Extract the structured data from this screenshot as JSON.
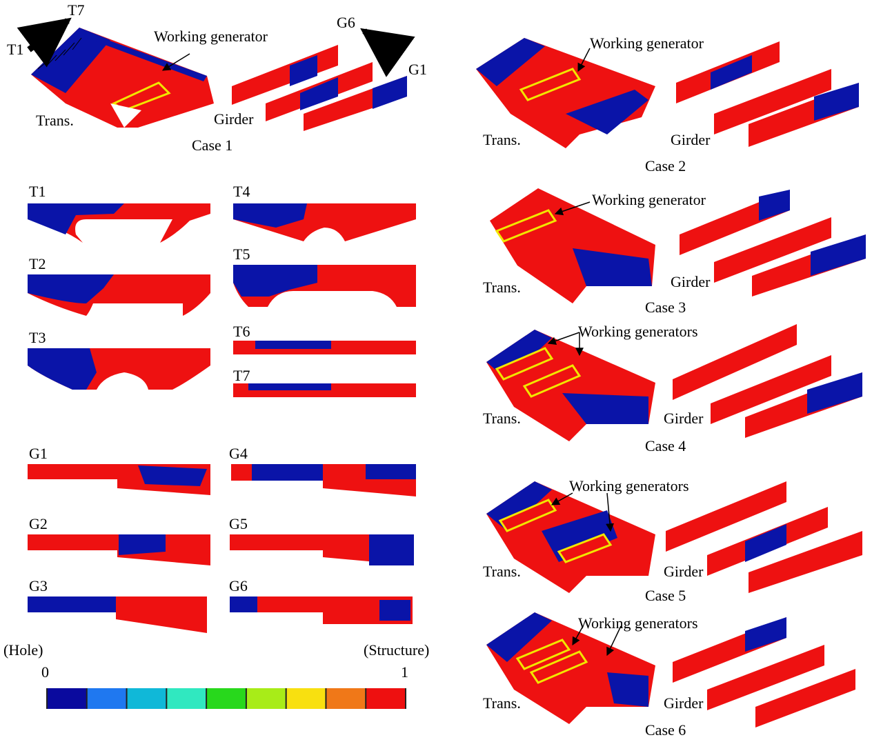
{
  "colors": {
    "structure": "#ee1111",
    "hole": "#0a14a8",
    "highlight": "#f2e600",
    "edge": "#000000",
    "colorbar": [
      "#0a0a9e",
      "#1f78f0",
      "#10b8d8",
      "#30e8c0",
      "#28d81c",
      "#a8ec18",
      "#f8e010",
      "#f07818",
      "#ee1010"
    ]
  },
  "case1": {
    "label": "Case 1",
    "trans": "Trans.",
    "girder": "Girder",
    "working": "Working generator",
    "t1": "T1",
    "t7": "T7",
    "g6": "G6",
    "g1": "G1"
  },
  "cases": [
    {
      "label": "Case 2",
      "trans": "Trans.",
      "girder": "Girder",
      "working": "Working generator"
    },
    {
      "label": "Case 3",
      "trans": "Trans.",
      "girder": "Girder",
      "working": "Working generator"
    },
    {
      "label": "Case 4",
      "trans": "Trans.",
      "girder": "Girder",
      "working": "Working generators"
    },
    {
      "label": "Case 5",
      "trans": "Trans.",
      "girder": "Girder",
      "working": "Working generators"
    },
    {
      "label": "Case 6",
      "trans": "Trans.",
      "girder": "Girder",
      "working": "Working generators"
    }
  ],
  "trans_sections": [
    "T1",
    "T2",
    "T3",
    "T4",
    "T5",
    "T6",
    "T7"
  ],
  "girder_sections": [
    "G1",
    "G2",
    "G3",
    "G4",
    "G5",
    "G6"
  ],
  "colorbar": {
    "left_title": "(Hole)",
    "right_title": "(Structure)",
    "min": "0",
    "max": "1"
  }
}
